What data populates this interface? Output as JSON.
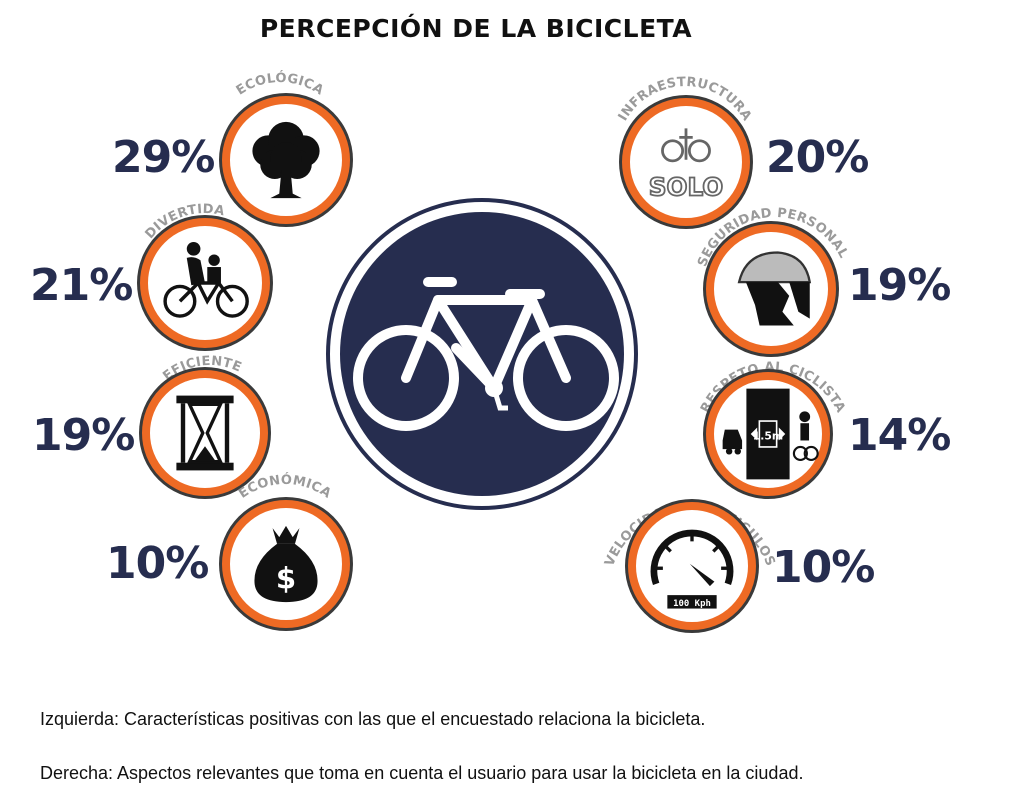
{
  "title": "PERCEPCIÓN DE LA BICICLETA",
  "colors": {
    "ring": "#ee6a24",
    "ring_outline": "#3a3a3a",
    "center_disc": "#262d4f",
    "percent_text": "#262d4f",
    "label_text": "#9a9a9a"
  },
  "left": [
    {
      "label": "ECOLÓGICA",
      "value": "29%",
      "icon": "tree-icon"
    },
    {
      "label": "DIVERTIDA",
      "value": "21%",
      "icon": "family-cyclist-icon"
    },
    {
      "label": "EFICIENTE",
      "value": "19%",
      "icon": "hourglass-icon"
    },
    {
      "label": "ECONÓMICA",
      "value": "10%",
      "icon": "money-bag-icon"
    }
  ],
  "right": [
    {
      "label": "INFRAESTRUCTURA",
      "value": "20%",
      "icon": "bike-lane-icon",
      "sign_text": "SOLO"
    },
    {
      "label": "SEGURIDAD PERSONAL",
      "value": "19%",
      "icon": "helmet-icon"
    },
    {
      "label": "RESPETO AL CICLISTA",
      "value": "14%",
      "icon": "safe-distance-icon",
      "sign_text": "1.5m"
    },
    {
      "label": "VELOCIDAD DE VEHICULOS",
      "value": "10%",
      "icon": "speedometer-icon",
      "sign_text": "100 Kph"
    }
  ],
  "center_icon": "bicycle-sign-icon",
  "notes": {
    "left": "Izquierda: Características positivas con las que el encuestado relaciona la bicicleta.",
    "right": "Derecha: Aspectos relevantes que toma en cuenta el usuario para usar la bicicleta en la ciudad."
  }
}
